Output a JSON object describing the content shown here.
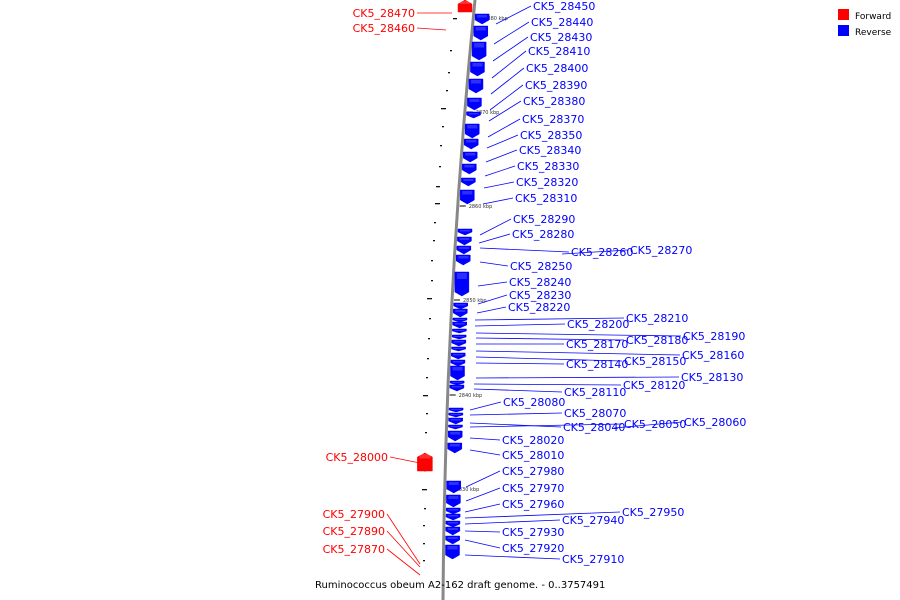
{
  "caption": "Ruminococcus obeum A2-162 draft genome. - 0..3757491",
  "colors": {
    "forward": "#ff0000",
    "reverse": "#0000ff"
  },
  "legend": [
    {
      "label": "Forward",
      "color": "#ff0000"
    },
    {
      "label": "Reverse",
      "color": "#0000ff"
    }
  ],
  "kbp_marks": [
    "2880 kbp",
    "2870 kbp",
    "2860 kbp",
    "2850 kbp",
    "2840 kbp",
    "2830 kbp"
  ],
  "genes": [
    {
      "name": "CK5_28470",
      "strand": "forward"
    },
    {
      "name": "CK5_28460",
      "strand": "forward"
    },
    {
      "name": "CK5_28450",
      "strand": "reverse"
    },
    {
      "name": "CK5_28440",
      "strand": "reverse"
    },
    {
      "name": "CK5_28430",
      "strand": "reverse"
    },
    {
      "name": "CK5_28410",
      "strand": "reverse"
    },
    {
      "name": "CK5_28400",
      "strand": "reverse"
    },
    {
      "name": "CK5_28390",
      "strand": "reverse"
    },
    {
      "name": "CK5_28380",
      "strand": "reverse"
    },
    {
      "name": "CK5_28370",
      "strand": "reverse"
    },
    {
      "name": "CK5_28350",
      "strand": "reverse"
    },
    {
      "name": "CK5_28340",
      "strand": "reverse"
    },
    {
      "name": "CK5_28330",
      "strand": "reverse"
    },
    {
      "name": "CK5_28320",
      "strand": "reverse"
    },
    {
      "name": "CK5_28310",
      "strand": "reverse"
    },
    {
      "name": "CK5_28290",
      "strand": "reverse"
    },
    {
      "name": "CK5_28280",
      "strand": "reverse"
    },
    {
      "name": "CK5_28260",
      "strand": "reverse"
    },
    {
      "name": "CK5_28270",
      "strand": "reverse"
    },
    {
      "name": "CK5_28250",
      "strand": "reverse"
    },
    {
      "name": "CK5_28240",
      "strand": "reverse"
    },
    {
      "name": "CK5_28230",
      "strand": "reverse"
    },
    {
      "name": "CK5_28220",
      "strand": "reverse"
    },
    {
      "name": "CK5_28210",
      "strand": "reverse"
    },
    {
      "name": "CK5_28200",
      "strand": "reverse"
    },
    {
      "name": "CK5_28190",
      "strand": "reverse"
    },
    {
      "name": "CK5_28180",
      "strand": "reverse"
    },
    {
      "name": "CK5_28170",
      "strand": "reverse"
    },
    {
      "name": "CK5_28160",
      "strand": "reverse"
    },
    {
      "name": "CK5_28150",
      "strand": "reverse"
    },
    {
      "name": "CK5_28140",
      "strand": "reverse"
    },
    {
      "name": "CK5_28130",
      "strand": "reverse"
    },
    {
      "name": "CK5_28120",
      "strand": "reverse"
    },
    {
      "name": "CK5_28110",
      "strand": "reverse"
    },
    {
      "name": "CK5_28080",
      "strand": "reverse"
    },
    {
      "name": "CK5_28070",
      "strand": "reverse"
    },
    {
      "name": "CK5_28040",
      "strand": "reverse"
    },
    {
      "name": "CK5_28050",
      "strand": "reverse"
    },
    {
      "name": "CK5_28060",
      "strand": "reverse"
    },
    {
      "name": "CK5_28020",
      "strand": "reverse"
    },
    {
      "name": "CK5_28010",
      "strand": "reverse"
    },
    {
      "name": "CK5_28000",
      "strand": "forward"
    },
    {
      "name": "CK5_27980",
      "strand": "reverse"
    },
    {
      "name": "CK5_27970",
      "strand": "reverse"
    },
    {
      "name": "CK5_27960",
      "strand": "reverse"
    },
    {
      "name": "CK5_27950",
      "strand": "reverse"
    },
    {
      "name": "CK5_27940",
      "strand": "reverse"
    },
    {
      "name": "CK5_27930",
      "strand": "reverse"
    },
    {
      "name": "CK5_27920",
      "strand": "reverse"
    },
    {
      "name": "CK5_27910",
      "strand": "reverse"
    },
    {
      "name": "CK5_27900",
      "strand": "forward"
    },
    {
      "name": "CK5_27890",
      "strand": "forward"
    },
    {
      "name": "CK5_27870",
      "strand": "forward"
    }
  ]
}
